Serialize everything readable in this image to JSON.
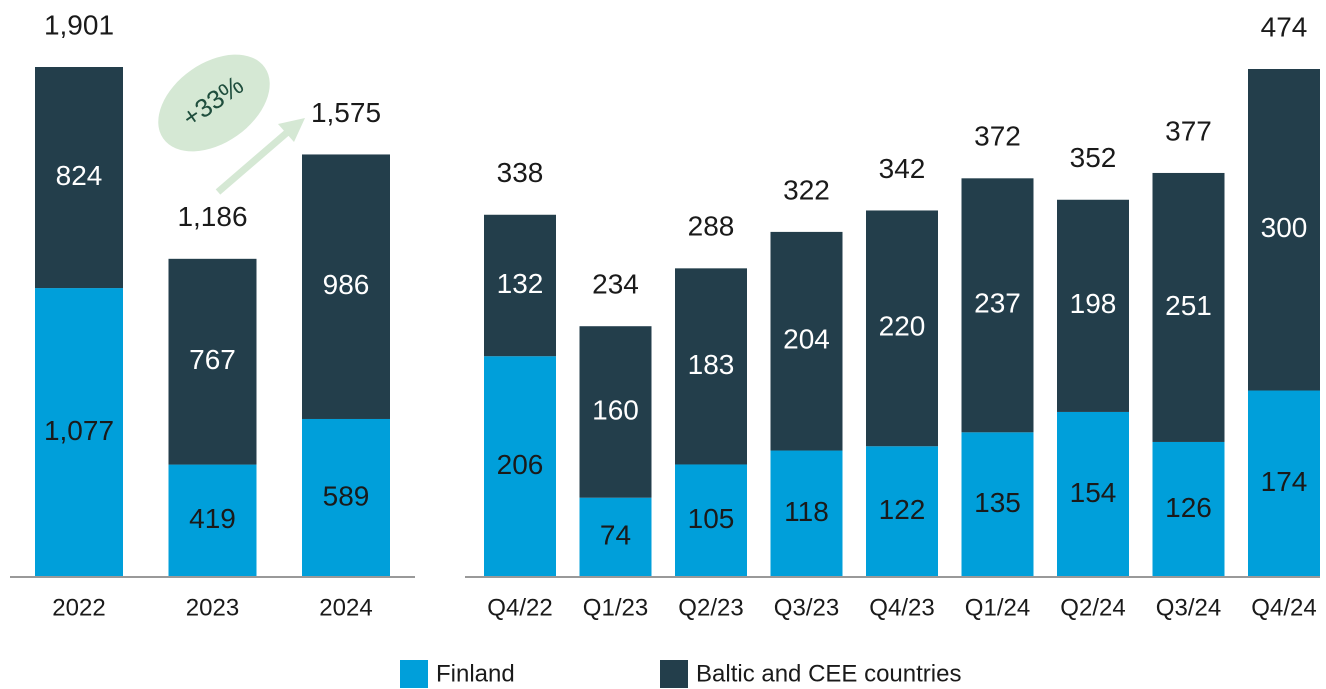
{
  "chart_data": [
    {
      "type": "stacked_bar",
      "categories": [
        "2022",
        "2023",
        "2024"
      ],
      "series": [
        {
          "name": "Finland",
          "color": "#009fda",
          "values": [
            1077,
            419,
            589
          ],
          "value_labels": [
            "1,077",
            "419",
            "589"
          ]
        },
        {
          "name": "Baltic and CEE countries",
          "color": "#233e4b",
          "values": [
            824,
            767,
            986
          ]
        }
      ],
      "totals": [
        1901,
        1186,
        1575
      ],
      "total_labels": [
        "1,901",
        "1,186",
        "1,575"
      ],
      "annotation": "+33%"
    },
    {
      "type": "stacked_bar",
      "categories": [
        "Q4/22",
        "Q1/23",
        "Q2/23",
        "Q3/23",
        "Q4/23",
        "Q1/24",
        "Q2/24",
        "Q3/24",
        "Q4/24"
      ],
      "series": [
        {
          "color": "#009fda",
          "values": [
            206,
            74,
            105,
            118,
            122,
            135,
            154,
            126,
            174
          ]
        },
        {
          "color": "#233e4b",
          "values": [
            132,
            160,
            183,
            204,
            220,
            237,
            198,
            251,
            300
          ]
        }
      ],
      "totals": [
        338,
        234,
        288,
        322,
        342,
        372,
        352,
        377,
        474
      ]
    }
  ]
}
